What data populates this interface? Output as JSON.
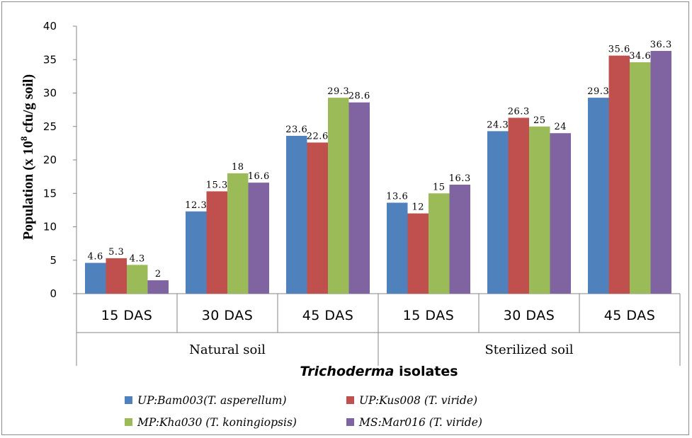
{
  "chart_data": {
    "type": "bar",
    "title": "",
    "ylabel_parts": [
      "Population (x 10",
      "8",
      " cfu/g soil)"
    ],
    "xlabel_parts": [
      "Trichoderma",
      " isolates"
    ],
    "ylim": [
      0,
      40
    ],
    "yticks": [
      "0",
      "5",
      "10",
      "15",
      "20",
      "25",
      "30",
      "35",
      "40"
    ],
    "grid": false,
    "legend_position": "bottom",
    "groups": [
      "Natural soil",
      "Sterilized soil"
    ],
    "categories": [
      "15 DAS",
      "30 DAS",
      "45 DAS",
      "15 DAS",
      "30 DAS",
      "45 DAS"
    ],
    "series": [
      {
        "name": "UP:Bam003(T. asperellum)",
        "color": "#4F81BD",
        "values": [
          4.6,
          12.3,
          23.6,
          13.6,
          24.3,
          29.3
        ]
      },
      {
        "name": "UP:Kus008 (T. viride)",
        "color": "#C0504D",
        "values": [
          5.3,
          15.3,
          22.6,
          12,
          26.3,
          35.6
        ]
      },
      {
        "name": "MP:Kha030 (T. koningiopsis)",
        "color": "#9BBB59",
        "values": [
          4.3,
          18,
          29.3,
          15,
          25,
          34.6
        ]
      },
      {
        "name": "MS:Mar016 (T. viride)",
        "color": "#8064A2",
        "values": [
          2,
          16.6,
          28.6,
          16.3,
          24,
          36.3
        ]
      }
    ]
  }
}
